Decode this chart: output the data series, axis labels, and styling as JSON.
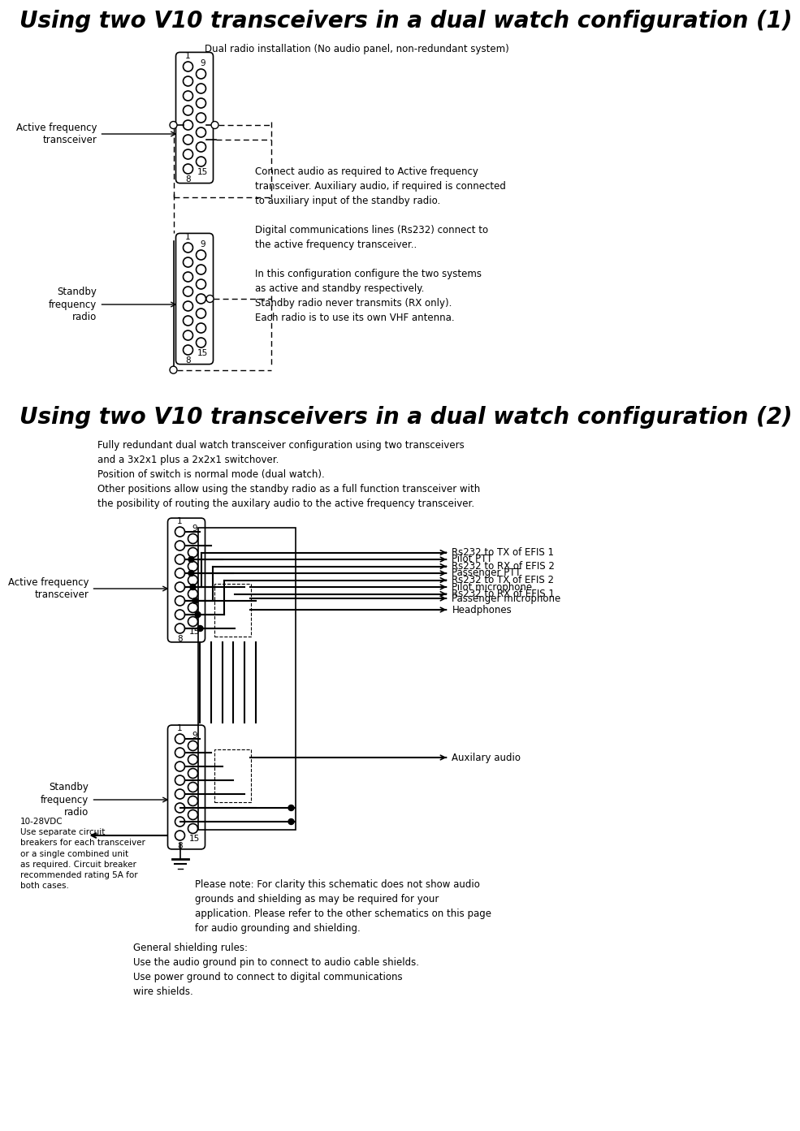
{
  "title1": "Using two V10 transceivers in a dual watch configuration (1)",
  "title2": "Using two V10 transceivers in a dual watch configuration (2)",
  "subtitle1": "Dual radio installation (No audio panel, non-redundant system)",
  "desc1": "Connect audio as required to Active frequency\ntransceiver. Auxiliary audio, if required is connected\nto auxiliary input of the standby radio.\n\nDigital communications lines (Rs232) connect to\nthe active frequency transceiver..\n\nIn this configuration configure the two systems\nas active and standby respectively.\nStandby radio never transmits (RX only).\nEach radio is to use its own VHF antenna.",
  "subtitle2": "Fully redundant dual watch transceiver configuration using two transceivers\nand a 3x2x1 plus a 2x2x1 switchover.\nPosition of switch is normal mode (dual watch).\nOther positions allow using the standby radio as a full function transceiver with\nthe posibility of routing the auxilary audio to the active frequency transceiver.",
  "labels_right": [
    "Pilot PTT",
    "Passenger PTT",
    "Rs232 to TX of EFIS 1",
    "Rs232 to RX of EFIS 2",
    "Rs232 to TX of EFIS 2",
    "Rs232 to RX of EFIS 1",
    "Pilot microphone",
    "Passenger microphone",
    "Headphones",
    "Auxilary audio"
  ],
  "note": "Please note: For clarity this schematic does not show audio\ngrounds and shielding as may be required for your\napplication. Please refer to the other schematics on this page\nfor audio grounding and shielding.",
  "left_note": "10-28VDC\nUse separate circuit\nbreakers for each transceiver\nor a single combined unit\nas required. Circuit breaker\nrecommended rating 5A for\nboth cases.",
  "shielding": "General shielding rules:\nUse the audio ground pin to connect to audio cable shields.\nUse power ground to connect to digital communications\nwire shields.",
  "bg_color": "#ffffff",
  "fg_color": "#000000",
  "title_fontsize": 20,
  "body_fontsize": 9
}
